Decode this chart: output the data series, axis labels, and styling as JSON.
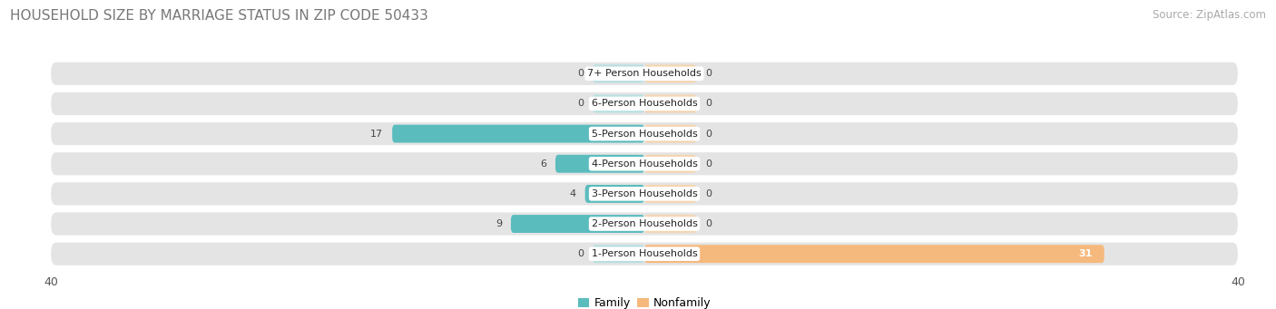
{
  "title": "HOUSEHOLD SIZE BY MARRIAGE STATUS IN ZIP CODE 50433",
  "source": "Source: ZipAtlas.com",
  "categories": [
    "7+ Person Households",
    "6-Person Households",
    "5-Person Households",
    "4-Person Households",
    "3-Person Households",
    "2-Person Households",
    "1-Person Households"
  ],
  "family_values": [
    0,
    0,
    17,
    6,
    4,
    9,
    0
  ],
  "nonfamily_values": [
    0,
    0,
    0,
    0,
    0,
    0,
    31
  ],
  "family_color": "#5bbcbe",
  "nonfamily_color": "#f5b97e",
  "xlim": [
    -40,
    40
  ],
  "xtick_vals": [
    -40,
    40
  ],
  "background_color": "#ffffff",
  "bar_bg_color": "#e4e4e4",
  "title_fontsize": 11,
  "source_fontsize": 8.5,
  "label_fontsize": 8,
  "value_fontsize": 8,
  "bar_height": 0.6,
  "zero_stub": 3.5
}
